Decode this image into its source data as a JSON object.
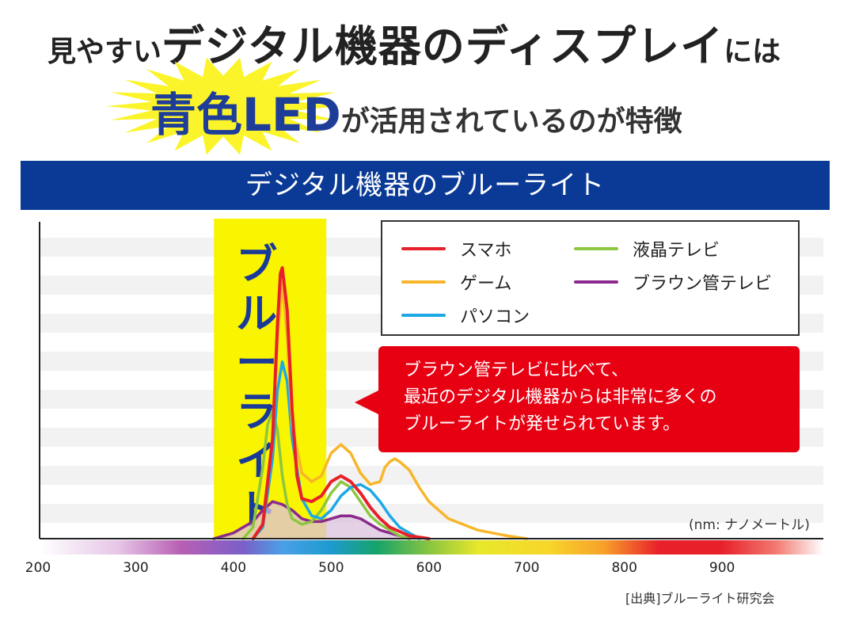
{
  "headline": {
    "line1_prefix": "見やすい",
    "line1_emphasis": "デジタル機器のディスプレイ",
    "line1_suffix": "には",
    "line2_emphasis": "青色LED",
    "line2_rest": "が活用されているのが特徴"
  },
  "banner": "デジタル機器のブルーライト",
  "callout": [
    "ブラウン管テレビに比べて、",
    "最近のデジタル機器からは非常に多くの",
    "ブルーライトが発せられています。"
  ],
  "source": "[出典]ブルーライト研究会",
  "colors": {
    "banner": "#0a3a96",
    "callout": "#e60012",
    "highlight": "#f9f400",
    "burst": "#fbf42a"
  },
  "chart_data": {
    "type": "line",
    "title": "デジタル機器のブルーライト",
    "xlabel": "(nm: ナノメートル)",
    "ylabel": "",
    "xlim": [
      200,
      1000
    ],
    "ylim": [
      0,
      1.0
    ],
    "xticks": [
      200,
      300,
      400,
      500,
      600,
      700,
      800,
      900
    ],
    "grid": true,
    "highlight_band": {
      "label": "ブルーライト",
      "range": [
        380,
        495
      ]
    },
    "legend_position": "top-right",
    "series": [
      {
        "name": "スマホ",
        "color": "#e8202a",
        "x": [
          420,
          430,
          440,
          445,
          448,
          450,
          455,
          460,
          465,
          470,
          480,
          490,
          500,
          510,
          520,
          530,
          540,
          550,
          560,
          580,
          600
        ],
        "y": [
          0,
          0.05,
          0.35,
          0.75,
          0.93,
          0.95,
          0.8,
          0.45,
          0.22,
          0.14,
          0.13,
          0.15,
          0.2,
          0.22,
          0.2,
          0.16,
          0.11,
          0.07,
          0.04,
          0.01,
          0
        ]
      },
      {
        "name": "ゲーム",
        "color": "#f7b62a",
        "x": [
          420,
          430,
          440,
          445,
          450,
          455,
          460,
          470,
          480,
          490,
          500,
          510,
          520,
          530,
          540,
          550,
          555,
          560,
          565,
          570,
          580,
          590,
          600,
          620,
          650,
          680,
          700
        ],
        "y": [
          0,
          0.05,
          0.35,
          0.7,
          0.9,
          0.7,
          0.4,
          0.23,
          0.2,
          0.22,
          0.3,
          0.33,
          0.3,
          0.23,
          0.19,
          0.2,
          0.25,
          0.27,
          0.28,
          0.27,
          0.24,
          0.18,
          0.13,
          0.07,
          0.03,
          0.01,
          0
        ]
      },
      {
        "name": "パソコン",
        "color": "#1ea9e6",
        "x": [
          420,
          430,
          440,
          445,
          450,
          455,
          460,
          470,
          480,
          490,
          500,
          510,
          520,
          530,
          540,
          550,
          560,
          570,
          580,
          590
        ],
        "y": [
          0,
          0.04,
          0.28,
          0.52,
          0.62,
          0.55,
          0.35,
          0.14,
          0.08,
          0.07,
          0.1,
          0.15,
          0.18,
          0.19,
          0.17,
          0.13,
          0.08,
          0.04,
          0.02,
          0
        ]
      },
      {
        "name": "液晶テレビ",
        "color": "#8dc63f",
        "x": [
          410,
          420,
          430,
          435,
          440,
          445,
          450,
          455,
          460,
          470,
          480,
          490,
          500,
          510,
          520,
          530,
          540,
          550,
          560,
          570,
          580
        ],
        "y": [
          0,
          0.04,
          0.25,
          0.4,
          0.45,
          0.38,
          0.22,
          0.12,
          0.07,
          0.05,
          0.06,
          0.1,
          0.16,
          0.2,
          0.18,
          0.13,
          0.08,
          0.05,
          0.03,
          0.01,
          0
        ]
      },
      {
        "name": "ブラウン管テレビ",
        "color": "#8b2a8c",
        "x": [
          380,
          400,
          420,
          430,
          440,
          450,
          460,
          470,
          480,
          490,
          500,
          510,
          520,
          530,
          540,
          550,
          560,
          580
        ],
        "y": [
          0,
          0.02,
          0.06,
          0.1,
          0.13,
          0.12,
          0.1,
          0.07,
          0.06,
          0.06,
          0.07,
          0.08,
          0.08,
          0.07,
          0.05,
          0.03,
          0.02,
          0
        ]
      }
    ]
  }
}
